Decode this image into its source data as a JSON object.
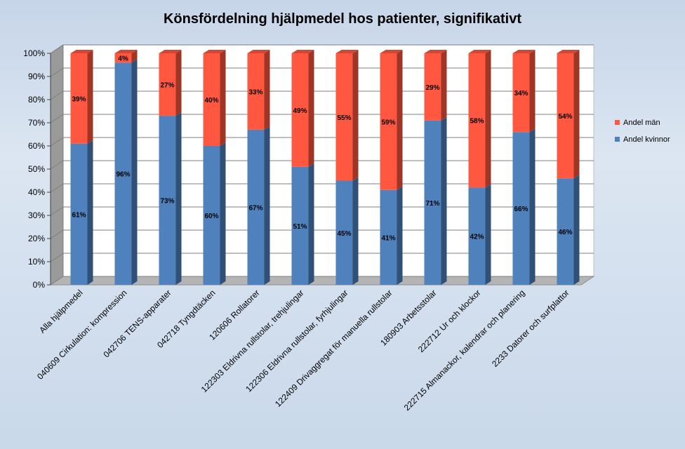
{
  "chart_data": {
    "type": "bar",
    "stacked": true,
    "percent_stacked": true,
    "three_d": true,
    "title": "Könsfördelning hjälpmedel hos patienter, signifikativt",
    "categories": [
      "Alla hjälpmedel",
      "040609 Cirkulation: kompression",
      "042706 TENS-apparater",
      "042718 Tyngdtäcken",
      "120606 Rollatorer",
      "122303 Eldrivna rullstolar, trehjulingar",
      "122306 Eldrivna rullstolar, fyrhjulingar",
      "122409 Drivaggregat för manuella rullstolar",
      "180903 Arbetsstolar",
      "222712 Ur och klockor",
      "222715 Almanackor, kalendrar och planering",
      "2233 Datorer och surfplattor"
    ],
    "series": [
      {
        "name": "Andel kvinnor",
        "color": "#4f81bd",
        "values": [
          61,
          96,
          73,
          60,
          67,
          51,
          45,
          41,
          71,
          42,
          66,
          46
        ],
        "labels": [
          "61%",
          "96%",
          "73%",
          "60%",
          "67%",
          "51%",
          "45%",
          "41%",
          "71%",
          "42%",
          "66%",
          "46%"
        ]
      },
      {
        "name": "Andel män",
        "color": "#ff5740",
        "values": [
          39,
          4,
          27,
          40,
          33,
          49,
          55,
          59,
          29,
          58,
          34,
          54
        ],
        "labels": [
          "39%",
          "4%",
          "27%",
          "40%",
          "33%",
          "49%",
          "55%",
          "59%",
          "29%",
          "58%",
          "34%",
          "54%"
        ]
      }
    ],
    "ylim": [
      0,
      100
    ],
    "yticks": [
      "0%",
      "10%",
      "20%",
      "30%",
      "40%",
      "50%",
      "60%",
      "70%",
      "80%",
      "90%",
      "100%"
    ],
    "legend": {
      "position": "right",
      "entries": [
        "Andel män",
        "Andel kvinnor"
      ]
    },
    "grid": true
  }
}
